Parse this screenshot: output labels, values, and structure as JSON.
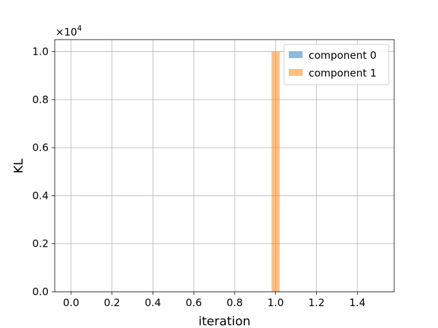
{
  "chart_data": {
    "type": "bar",
    "xlabel": "iteration",
    "ylabel": "KL",
    "offset_text": "×10",
    "offset_exponent": "4",
    "xlim": [
      -0.08,
      1.58
    ],
    "ylim": [
      0,
      10500
    ],
    "grid": true,
    "x_ticks": [
      0.0,
      0.2,
      0.4,
      0.6,
      0.8,
      1.0,
      1.2,
      1.4
    ],
    "x_tick_labels": [
      "0.0",
      "0.2",
      "0.4",
      "0.6",
      "0.8",
      "1.0",
      "1.2",
      "1.4"
    ],
    "y_ticks": [
      0,
      2000,
      4000,
      6000,
      8000,
      10000
    ],
    "y_tick_labels": [
      "0.0",
      "0.2",
      "0.4",
      "0.6",
      "0.8",
      "1.0"
    ],
    "bar_width": 0.04,
    "legend_position": "top-right",
    "series": [
      {
        "name": "component 0",
        "color": "#1f77b4",
        "opacity": 0.5,
        "bars": [
          {
            "x": 1.0,
            "y": 0
          }
        ]
      },
      {
        "name": "component 1",
        "color": "#ff7f0e",
        "opacity": 0.5,
        "bars": [
          {
            "x": 1.0,
            "y": 10000
          }
        ]
      }
    ]
  }
}
